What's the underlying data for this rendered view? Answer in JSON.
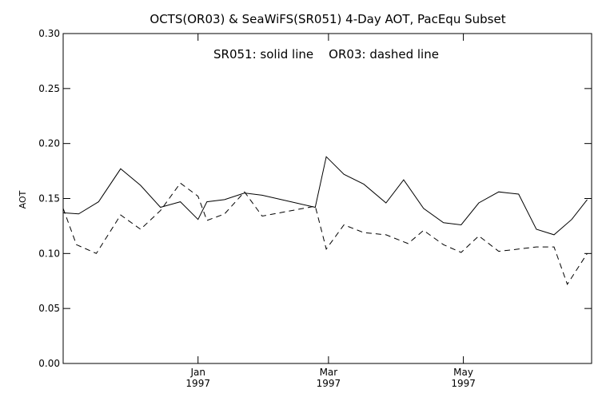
{
  "chart_data": {
    "type": "line",
    "title": "OCTS(OR03) & SeaWiFS(SR051) 4-Day AOT, PacEqu Subset",
    "annotation": "SR051: solid line    OR03: dashed line",
    "xlabel": "",
    "ylabel": "AOT",
    "xlim": [
      "1996-11-01",
      "1997-06-28"
    ],
    "ylim": [
      0.0,
      0.3
    ],
    "y_ticks": [
      "0.00",
      "0.05",
      "0.10",
      "0.15",
      "0.20",
      "0.25",
      "0.30"
    ],
    "x_ticks": [
      {
        "date": "1997-01-01",
        "month": "Jan",
        "year": "1997"
      },
      {
        "date": "1997-03-01",
        "month": "Mar",
        "year": "1997"
      },
      {
        "date": "1997-05-01",
        "month": "May",
        "year": "1997"
      }
    ],
    "grid": false,
    "series": [
      {
        "name": "SR051",
        "style": "solid",
        "color": "#000000",
        "x": [
          "1996-11-01",
          "1996-11-08",
          "1996-11-17",
          "1996-11-27",
          "1996-12-06",
          "1996-12-15",
          "1996-12-24",
          "1997-01-01",
          "1997-01-05",
          "1997-01-13",
          "1997-01-22",
          "1997-01-30",
          "1997-02-23",
          "1997-02-28",
          "1997-03-08",
          "1997-03-17",
          "1997-03-27",
          "1997-04-04",
          "1997-04-13",
          "1997-04-22",
          "1997-04-30",
          "1997-05-08",
          "1997-05-17",
          "1997-05-26",
          "1997-06-03",
          "1997-06-11",
          "1997-06-19",
          "1997-06-26"
        ],
        "values": [
          0.137,
          0.136,
          0.147,
          0.177,
          0.162,
          0.142,
          0.147,
          0.131,
          0.147,
          0.149,
          0.155,
          0.153,
          0.142,
          0.188,
          0.172,
          0.163,
          0.146,
          0.167,
          0.141,
          0.128,
          0.126,
          0.146,
          0.156,
          0.154,
          0.122,
          0.117,
          0.131,
          0.149
        ]
      },
      {
        "name": "OR03",
        "style": "dashed",
        "color": "#000000",
        "x": [
          "1996-11-01",
          "1996-11-07",
          "1996-11-16",
          "1996-11-27",
          "1996-12-06",
          "1996-12-15",
          "1996-12-24",
          "1997-01-01",
          "1997-01-05",
          "1997-01-13",
          "1997-01-22",
          "1997-01-30",
          "1997-02-23",
          "1997-02-28",
          "1997-03-08",
          "1997-03-17",
          "1997-03-27",
          "1997-04-06",
          "1997-04-13",
          "1997-04-22",
          "1997-04-30",
          "1997-05-08",
          "1997-05-17",
          "1997-05-26",
          "1997-06-03",
          "1997-06-11",
          "1997-06-17",
          "1997-06-26"
        ],
        "values": [
          0.141,
          0.108,
          0.1,
          0.135,
          0.122,
          0.139,
          0.164,
          0.152,
          0.13,
          0.136,
          0.156,
          0.134,
          0.143,
          0.104,
          0.126,
          0.119,
          0.117,
          0.109,
          0.121,
          0.108,
          0.101,
          0.116,
          0.102,
          0.104,
          0.106,
          0.106,
          0.072,
          0.1
        ]
      }
    ]
  }
}
